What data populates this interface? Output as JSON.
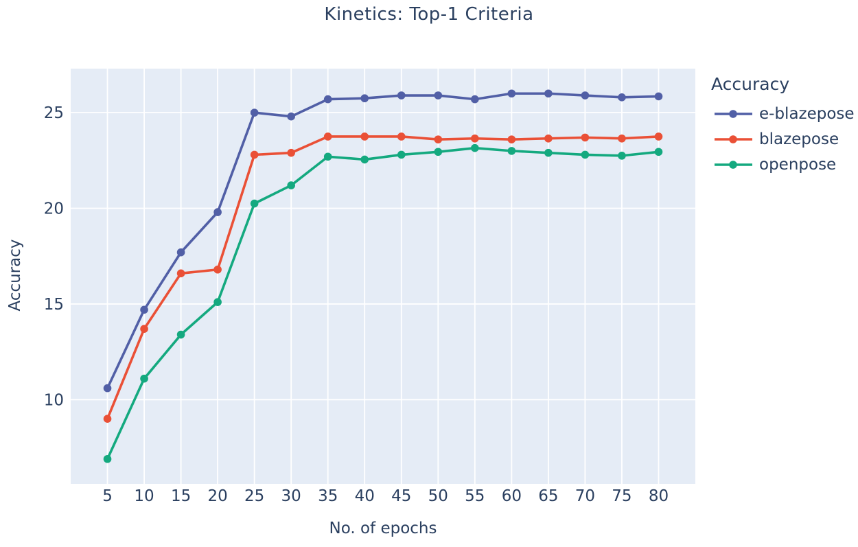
{
  "chart": {
    "title": "Kinetics: Top-1 Criteria",
    "colors": {
      "page_background": "#ffffff",
      "plot_background": "#e5ecf6",
      "grid": "#ffffff",
      "font": "#2a3f5f"
    }
  },
  "chart_data": {
    "type": "line",
    "title": "Kinetics: Top-1 Criteria",
    "xlabel": "No. of epochs",
    "ylabel": "Accuracy",
    "legend_title": "Accuracy",
    "legend_position": "right",
    "grid": true,
    "x": [
      5,
      10,
      15,
      20,
      25,
      30,
      35,
      40,
      45,
      50,
      55,
      60,
      65,
      70,
      75,
      80
    ],
    "xticks": [
      5,
      10,
      15,
      20,
      25,
      30,
      35,
      40,
      45,
      50,
      55,
      60,
      65,
      70,
      75,
      80
    ],
    "yticks": [
      10,
      15,
      20,
      25
    ],
    "xlim": [
      0,
      85
    ],
    "ylim": [
      5.6,
      27.3
    ],
    "series": [
      {
        "name": "e-blazepose",
        "color": "#515fa6",
        "values": [
          10.6,
          14.7,
          17.7,
          19.8,
          25.0,
          24.8,
          25.7,
          25.75,
          25.9,
          25.9,
          25.7,
          26.0,
          26.0,
          25.9,
          25.8,
          25.85
        ]
      },
      {
        "name": "blazepose",
        "color": "#ea5036",
        "values": [
          9.0,
          13.7,
          16.6,
          16.8,
          22.8,
          22.9,
          23.75,
          23.75,
          23.75,
          23.6,
          23.65,
          23.6,
          23.65,
          23.7,
          23.65,
          23.75
        ]
      },
      {
        "name": "openpose",
        "color": "#14a97f",
        "values": [
          6.9,
          11.1,
          13.4,
          15.1,
          20.25,
          21.2,
          22.7,
          22.55,
          22.8,
          22.95,
          23.15,
          23.0,
          22.9,
          22.8,
          22.75,
          22.95
        ]
      }
    ]
  }
}
